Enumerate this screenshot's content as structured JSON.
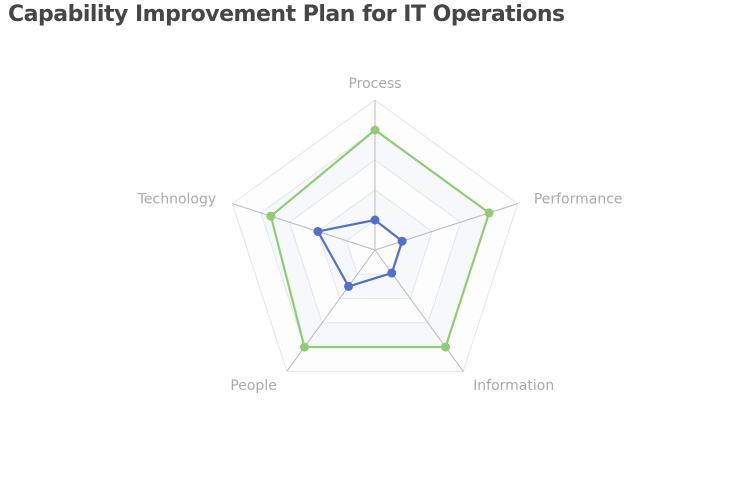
{
  "chart_data": {
    "type": "radar",
    "title": "Capability Improvement Plan for IT Operations",
    "indicators": [
      "Process",
      "Performance",
      "Information",
      "People",
      "Technology"
    ],
    "max": 100,
    "split_number": 5,
    "legend": "none",
    "series": [
      {
        "values": [
          80,
          80,
          80,
          80,
          73
        ],
        "color": "#91cc75"
      },
      {
        "values": [
          20,
          19,
          19,
          30,
          40
        ],
        "color": "#5470c6"
      }
    ]
  }
}
